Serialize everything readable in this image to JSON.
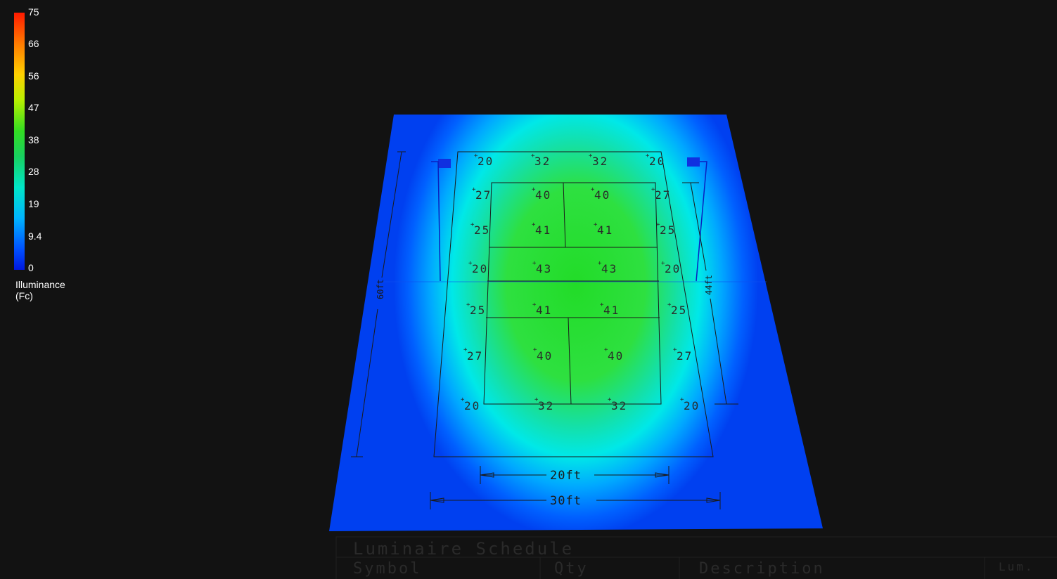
{
  "legend": {
    "ticks": [
      "75",
      "66",
      "56",
      "47",
      "38",
      "28",
      "19",
      "9.4",
      "0"
    ],
    "title_line1": "Illuminance",
    "title_line2": "(Fc)",
    "colors": [
      "#ff1a00",
      "#ff7a00",
      "#ffd000",
      "#b8f000",
      "#33dd22",
      "#18d060",
      "#00e6c8",
      "#00b4ff",
      "#0050ff",
      "#0018e0"
    ]
  },
  "readings": [
    [
      "20",
      "32",
      "32",
      "20"
    ],
    [
      "27",
      "40",
      "40",
      "27"
    ],
    [
      "25",
      "41",
      "41",
      "25"
    ],
    [
      "20",
      "43",
      "43",
      "20"
    ],
    [
      "25",
      "41",
      "41",
      "25"
    ],
    [
      "27",
      "40",
      "40",
      "27"
    ],
    [
      "20",
      "32",
      "32",
      "20"
    ]
  ],
  "dimensions": {
    "inner_width": "20ft",
    "outer_width": "30ft",
    "outer_length": "60ft",
    "inner_length": "44ft"
  },
  "schedule": {
    "title": "Luminaire Schedule",
    "columns": [
      "Symbol",
      "Qty",
      "Description",
      "Lum."
    ]
  }
}
